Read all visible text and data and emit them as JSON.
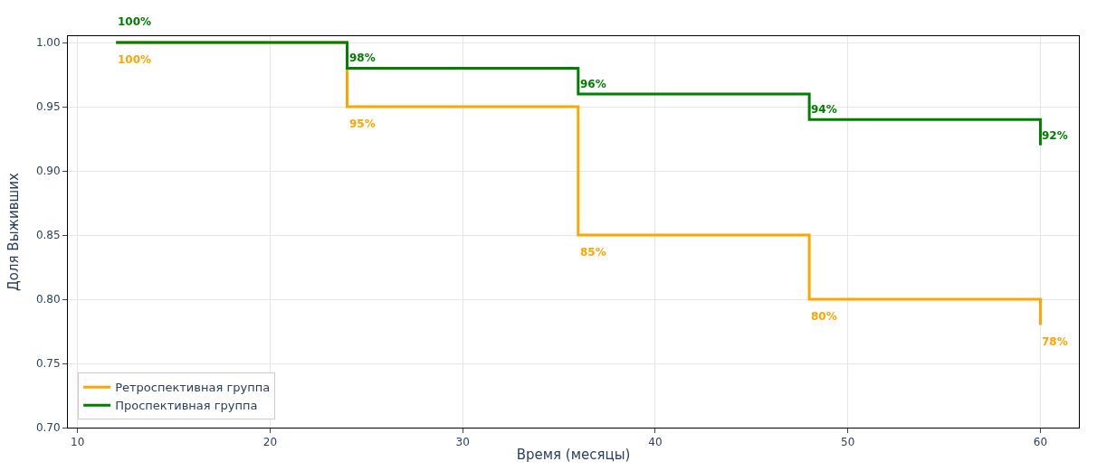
{
  "chart_data": {
    "type": "step",
    "xlabel": "Время (месяцы)",
    "ylabel": "Доля Выживших",
    "x": [
      12,
      24,
      36,
      48,
      60
    ],
    "series": [
      {
        "name": "Ретроспективная группа",
        "color": "#ffa500",
        "values": [
          1.0,
          0.95,
          0.85,
          0.8,
          0.78
        ],
        "value_labels": [
          "100%",
          "95%",
          "85%",
          "80%",
          "78%"
        ]
      },
      {
        "name": "Проспективная группа",
        "color": "#008000",
        "values": [
          1.0,
          0.98,
          0.96,
          0.94,
          0.92
        ],
        "value_labels": [
          "100%",
          "98%",
          "96%",
          "94%",
          "92%"
        ]
      }
    ],
    "xlim": [
      9.5,
      62
    ],
    "xticks": [
      10,
      20,
      30,
      40,
      50,
      60
    ],
    "ylim": [
      0.7,
      1.005
    ],
    "yticks": [
      {
        "value": 0.7,
        "label": "0.70"
      },
      {
        "value": 0.75,
        "label": "0.75"
      },
      {
        "value": 0.8,
        "label": "0.80"
      },
      {
        "value": 0.85,
        "label": "0.85"
      },
      {
        "value": 0.9,
        "label": "0.90"
      },
      {
        "value": 0.95,
        "label": "0.95"
      },
      {
        "value": 1.0,
        "label": "1.00"
      }
    ],
    "grid": true,
    "legend": "bottom left",
    "marker": "none",
    "line_style": "solid"
  }
}
